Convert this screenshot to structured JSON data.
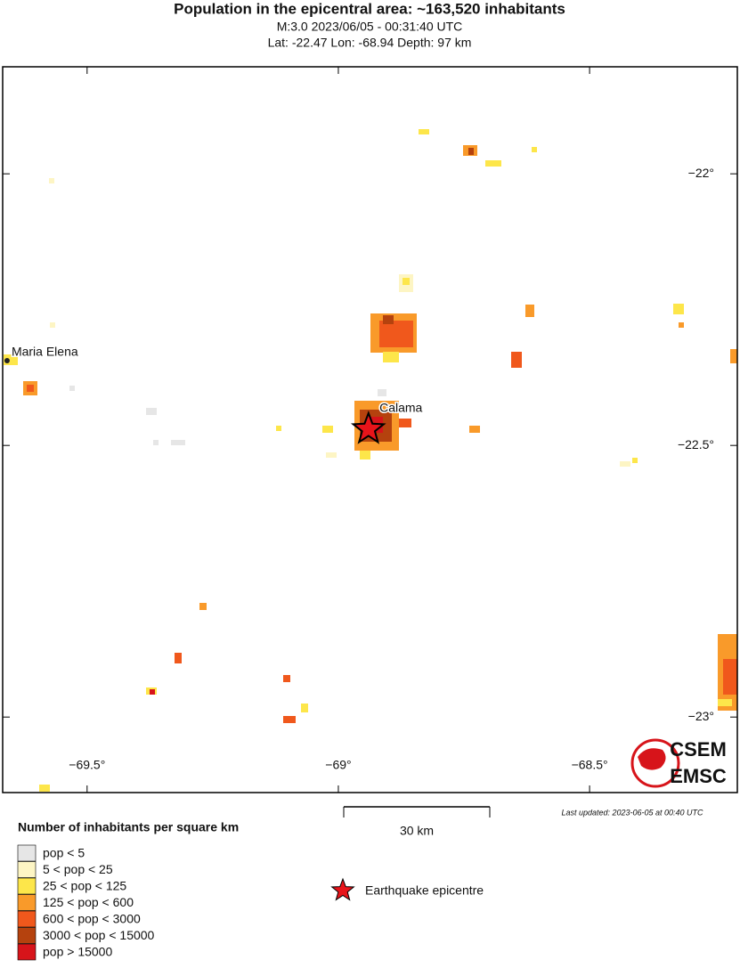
{
  "header": {
    "title": "Population in the epicentral area: ~163,520 inhabitants",
    "subtitle": "M:3.0 2023/06/05 - 00:31:40 UTC",
    "location": "Lat: -22.47 Lon: -68.94 Depth: 97 km"
  },
  "map": {
    "xlim": [
      -69.668,
      -68.206
    ],
    "ylim": [
      -23.139,
      -21.803
    ],
    "xticks": [
      {
        "value": -69.5,
        "label": "−69.5°"
      },
      {
        "value": -69,
        "label": "−69°"
      },
      {
        "value": -68.5,
        "label": "−68.5°"
      }
    ],
    "yticks": [
      {
        "value": -22,
        "label": "−22°"
      },
      {
        "value": -22.5,
        "label": "−22.5°"
      },
      {
        "value": -23,
        "label": "−23°"
      }
    ],
    "places": [
      {
        "name": "Maria Elena",
        "lon": -69.661,
        "lat": -22.344
      },
      {
        "name": "Calama",
        "lon": -68.92,
        "lat": -22.44
      }
    ],
    "epicenter": {
      "lon": -68.94,
      "lat": -22.47,
      "color": "#e8141a"
    },
    "scale_label": "30 km",
    "updated": "Last updated: 2023-06-05 at 00:40 UTC",
    "logo": [
      "CSEM",
      "EMSC"
    ]
  },
  "legend": {
    "title": "Number of inhabitants per square km",
    "items": [
      {
        "label": "pop < 5",
        "color": "#e6e6e6"
      },
      {
        "label": "5 < pop < 25",
        "color": "#fdf5c4"
      },
      {
        "label": "25 < pop < 125",
        "color": "#fde64a"
      },
      {
        "label": "125 < pop < 600",
        "color": "#f99a2a"
      },
      {
        "label": "600 < pop < 3000",
        "color": "#f0581c"
      },
      {
        "label": "3000 < pop < 15000",
        "color": "#b5420e"
      },
      {
        "label": "pop > 15000",
        "color": "#d7141a"
      }
    ],
    "epicenter_label": "Earthquake epicentre"
  }
}
